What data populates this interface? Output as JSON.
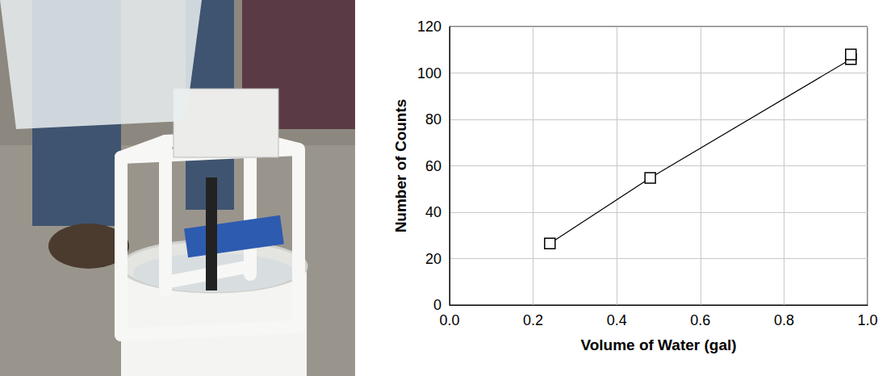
{
  "chart_data": {
    "type": "line",
    "x_label": "Volume of Water (gal)",
    "y_label": "Number of Counts",
    "x": [
      0.24,
      0.48,
      0.96,
      0.96
    ],
    "values": [
      26.5,
      54.8,
      106,
      108
    ],
    "color": "#000000",
    "marker": "square",
    "xlim": [
      0,
      1
    ],
    "ylim": [
      0,
      120
    ],
    "xticks": [
      {
        "value": 0,
        "label": "0.0"
      },
      0.2,
      0.4,
      0.6,
      0.8,
      {
        "value": 1,
        "label": "1.0"
      }
    ],
    "yticks": [
      0,
      20,
      40,
      60,
      80,
      100,
      120
    ],
    "grid": true
  }
}
